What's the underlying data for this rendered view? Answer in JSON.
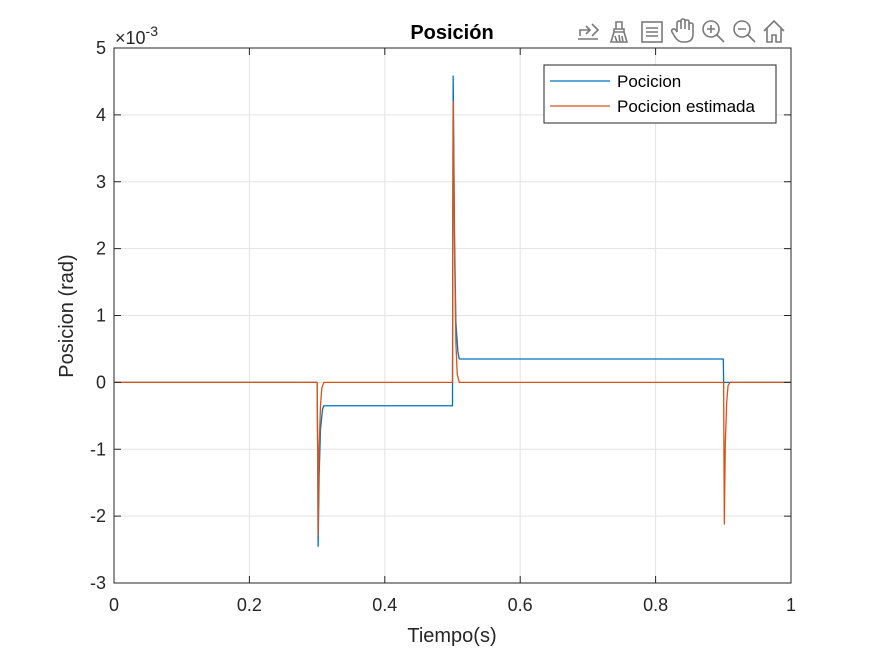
{
  "toolbar": {
    "icons": [
      "export-icon",
      "brush-icon",
      "datatip-icon",
      "pan-icon",
      "zoom-in-icon",
      "zoom-out-icon",
      "home-icon"
    ]
  },
  "chart_data": {
    "type": "line",
    "title": "Posición",
    "xlabel": "Tiempo(s)",
    "ylabel": "Posicion (rad)",
    "y_multiplier_base": "×10",
    "y_multiplier_exp": "-3",
    "xlim": [
      0,
      1
    ],
    "ylim": [
      -3,
      5
    ],
    "xticks": [
      0,
      0.2,
      0.4,
      0.6,
      0.8,
      1
    ],
    "xtick_labels": [
      "0",
      "0.2",
      "0.4",
      "0.6",
      "0.8",
      "1"
    ],
    "yticks": [
      -3,
      -2,
      -1,
      0,
      1,
      2,
      3,
      4,
      5
    ],
    "ytick_labels": [
      "-3",
      "-2",
      "-1",
      "0",
      "1",
      "2",
      "3",
      "4",
      "5"
    ],
    "grid": true,
    "legend_position": "top-right",
    "series": [
      {
        "name": "Pocicion",
        "color": "#0072BD",
        "x": [
          0,
          0.3,
          0.301,
          0.3015,
          0.303,
          0.305,
          0.308,
          0.31,
          0.5,
          0.5005,
          0.501,
          0.503,
          0.505,
          0.508,
          0.51,
          0.9,
          0.9005,
          1
        ],
        "y": [
          0,
          0,
          -1.2,
          -2.45,
          -1.4,
          -0.7,
          -0.4,
          -0.35,
          -0.35,
          2.5,
          4.58,
          2.2,
          0.9,
          0.45,
          0.35,
          0.35,
          0,
          0
        ]
      },
      {
        "name": "Pocicion estimada",
        "color": "#D95319",
        "x": [
          0,
          0.3,
          0.301,
          0.3015,
          0.303,
          0.305,
          0.307,
          0.31,
          0.5,
          0.5005,
          0.501,
          0.503,
          0.505,
          0.507,
          0.51,
          0.9,
          0.9005,
          0.901,
          0.9015,
          0.903,
          0.905,
          0.907,
          0.91,
          1
        ],
        "y": [
          0,
          0,
          -1.2,
          -2.28,
          -1.0,
          -0.35,
          -0.08,
          0,
          0,
          2.4,
          4.2,
          2.0,
          0.6,
          0.12,
          0,
          0,
          0,
          -1.2,
          -2.12,
          -0.9,
          -0.3,
          -0.05,
          0,
          0
        ]
      }
    ]
  }
}
